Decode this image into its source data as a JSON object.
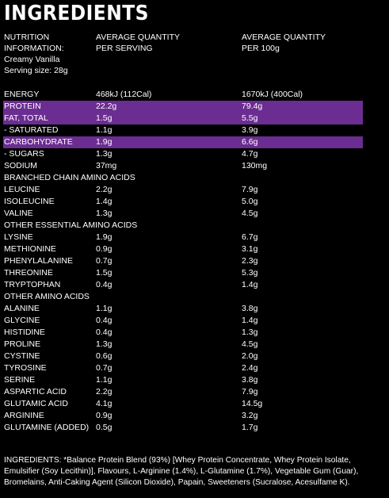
{
  "title": "INGREDIENTS",
  "header": {
    "col1": [
      "NUTRITION",
      "INFORMATION:",
      "Creamy Vanilla",
      "Serving size: 28g"
    ],
    "col2": [
      "AVERAGE QUANTITY",
      "PER SERVING"
    ],
    "col3": [
      "AVERAGE QUANTITY",
      "PER 100g"
    ]
  },
  "rows": [
    {
      "name": "ENERGY",
      "serving": "468kJ (112Cal)",
      "per100": "1670kJ (400Cal)",
      "highlight": false
    },
    {
      "name": "PROTEIN",
      "serving": "22.2g",
      "per100": "79.4g",
      "highlight": true
    },
    {
      "name": "FAT, TOTAL",
      "serving": "1.5g",
      "per100": "5.5g",
      "highlight": true
    },
    {
      "name": "- SATURATED",
      "serving": "1.1g",
      "per100": "3.9g",
      "highlight": false
    },
    {
      "name": "CARBOHYDRATE",
      "serving": "1.9g",
      "per100": "6.6g",
      "highlight": true
    },
    {
      "name": "- SUGARS",
      "serving": "1.3g",
      "per100": "4.7g",
      "highlight": false
    },
    {
      "name": "SODIUM",
      "serving": "37mg",
      "per100": "130mg",
      "highlight": false
    },
    {
      "name": "BRANCHED CHAIN AMINO ACIDS",
      "serving": "",
      "per100": "",
      "highlight": false
    },
    {
      "name": "LEUCINE",
      "serving": "2.2g",
      "per100": "7.9g",
      "highlight": false
    },
    {
      "name": "ISOLEUCINE",
      "serving": "1.4g",
      "per100": "5.0g",
      "highlight": false
    },
    {
      "name": "VALINE",
      "serving": "1.3g",
      "per100": "4.5g",
      "highlight": false
    },
    {
      "name": "OTHER ESSENTIAL AMINO ACIDS",
      "serving": "",
      "per100": "",
      "highlight": false
    },
    {
      "name": "LYSINE",
      "serving": "1.9g",
      "per100": "6.7g",
      "highlight": false
    },
    {
      "name": "METHIONINE",
      "serving": "0.9g",
      "per100": "3.1g",
      "highlight": false
    },
    {
      "name": "PHENYLALANINE",
      "serving": "0.7g",
      "per100": "2.3g",
      "highlight": false
    },
    {
      "name": "THREONINE",
      "serving": "1.5g",
      "per100": "5.3g",
      "highlight": false
    },
    {
      "name": "TRYPTOPHAN",
      "serving": "0.4g",
      "per100": "1.4g",
      "highlight": false
    },
    {
      "name": "OTHER AMINO ACIDS",
      "serving": "",
      "per100": "",
      "highlight": false
    },
    {
      "name": "ALANINE",
      "serving": "1.1g",
      "per100": "3.8g",
      "highlight": false
    },
    {
      "name": "GLYCINE",
      "serving": "0.4g",
      "per100": "1.4g",
      "highlight": false
    },
    {
      "name": "HISTIDINE",
      "serving": "0.4g",
      "per100": "1.3g",
      "highlight": false
    },
    {
      "name": "PROLINE",
      "serving": "1.3g",
      "per100": "4.5g",
      "highlight": false
    },
    {
      "name": "CYSTINE",
      "serving": "0.6g",
      "per100": "2.0g",
      "highlight": false
    },
    {
      "name": "TYROSINE",
      "serving": "0.7g",
      "per100": "2.4g",
      "highlight": false
    },
    {
      "name": "SERINE",
      "serving": "1.1g",
      "per100": "3.8g",
      "highlight": false
    },
    {
      "name": "ASPARTIC ACID",
      "serving": "2.2g",
      "per100": "7.9g",
      "highlight": false
    },
    {
      "name": "GLUTAMIC ACID",
      "serving": "4.1g",
      "per100": "14.5g",
      "highlight": false
    },
    {
      "name": "ARGININE",
      "serving": "0.9g",
      "per100": "3.2g",
      "highlight": false
    },
    {
      "name": "GLUTAMINE (ADDED)",
      "serving": "0.5g",
      "per100": "1.7g",
      "highlight": false
    }
  ],
  "ingredients_text": "INGREDIENTS: *Balance Protein Blend (93%) [Whey Protein Concentrate, Whey Protein Isolate, Emulsifier (Soy Lecithin)], Flavours, L-Arginine (1.4%), L-Glutamine (1.7%), Vegetable Gum (Guar), Bromelains, Anti-Caking Agent (Silicon Dioxide), Papain, Sweeteners (Sucralose, Acesulfame K).",
  "colors": {
    "background": "#000000",
    "text": "#ffffff",
    "highlight": "#6b2d91"
  }
}
